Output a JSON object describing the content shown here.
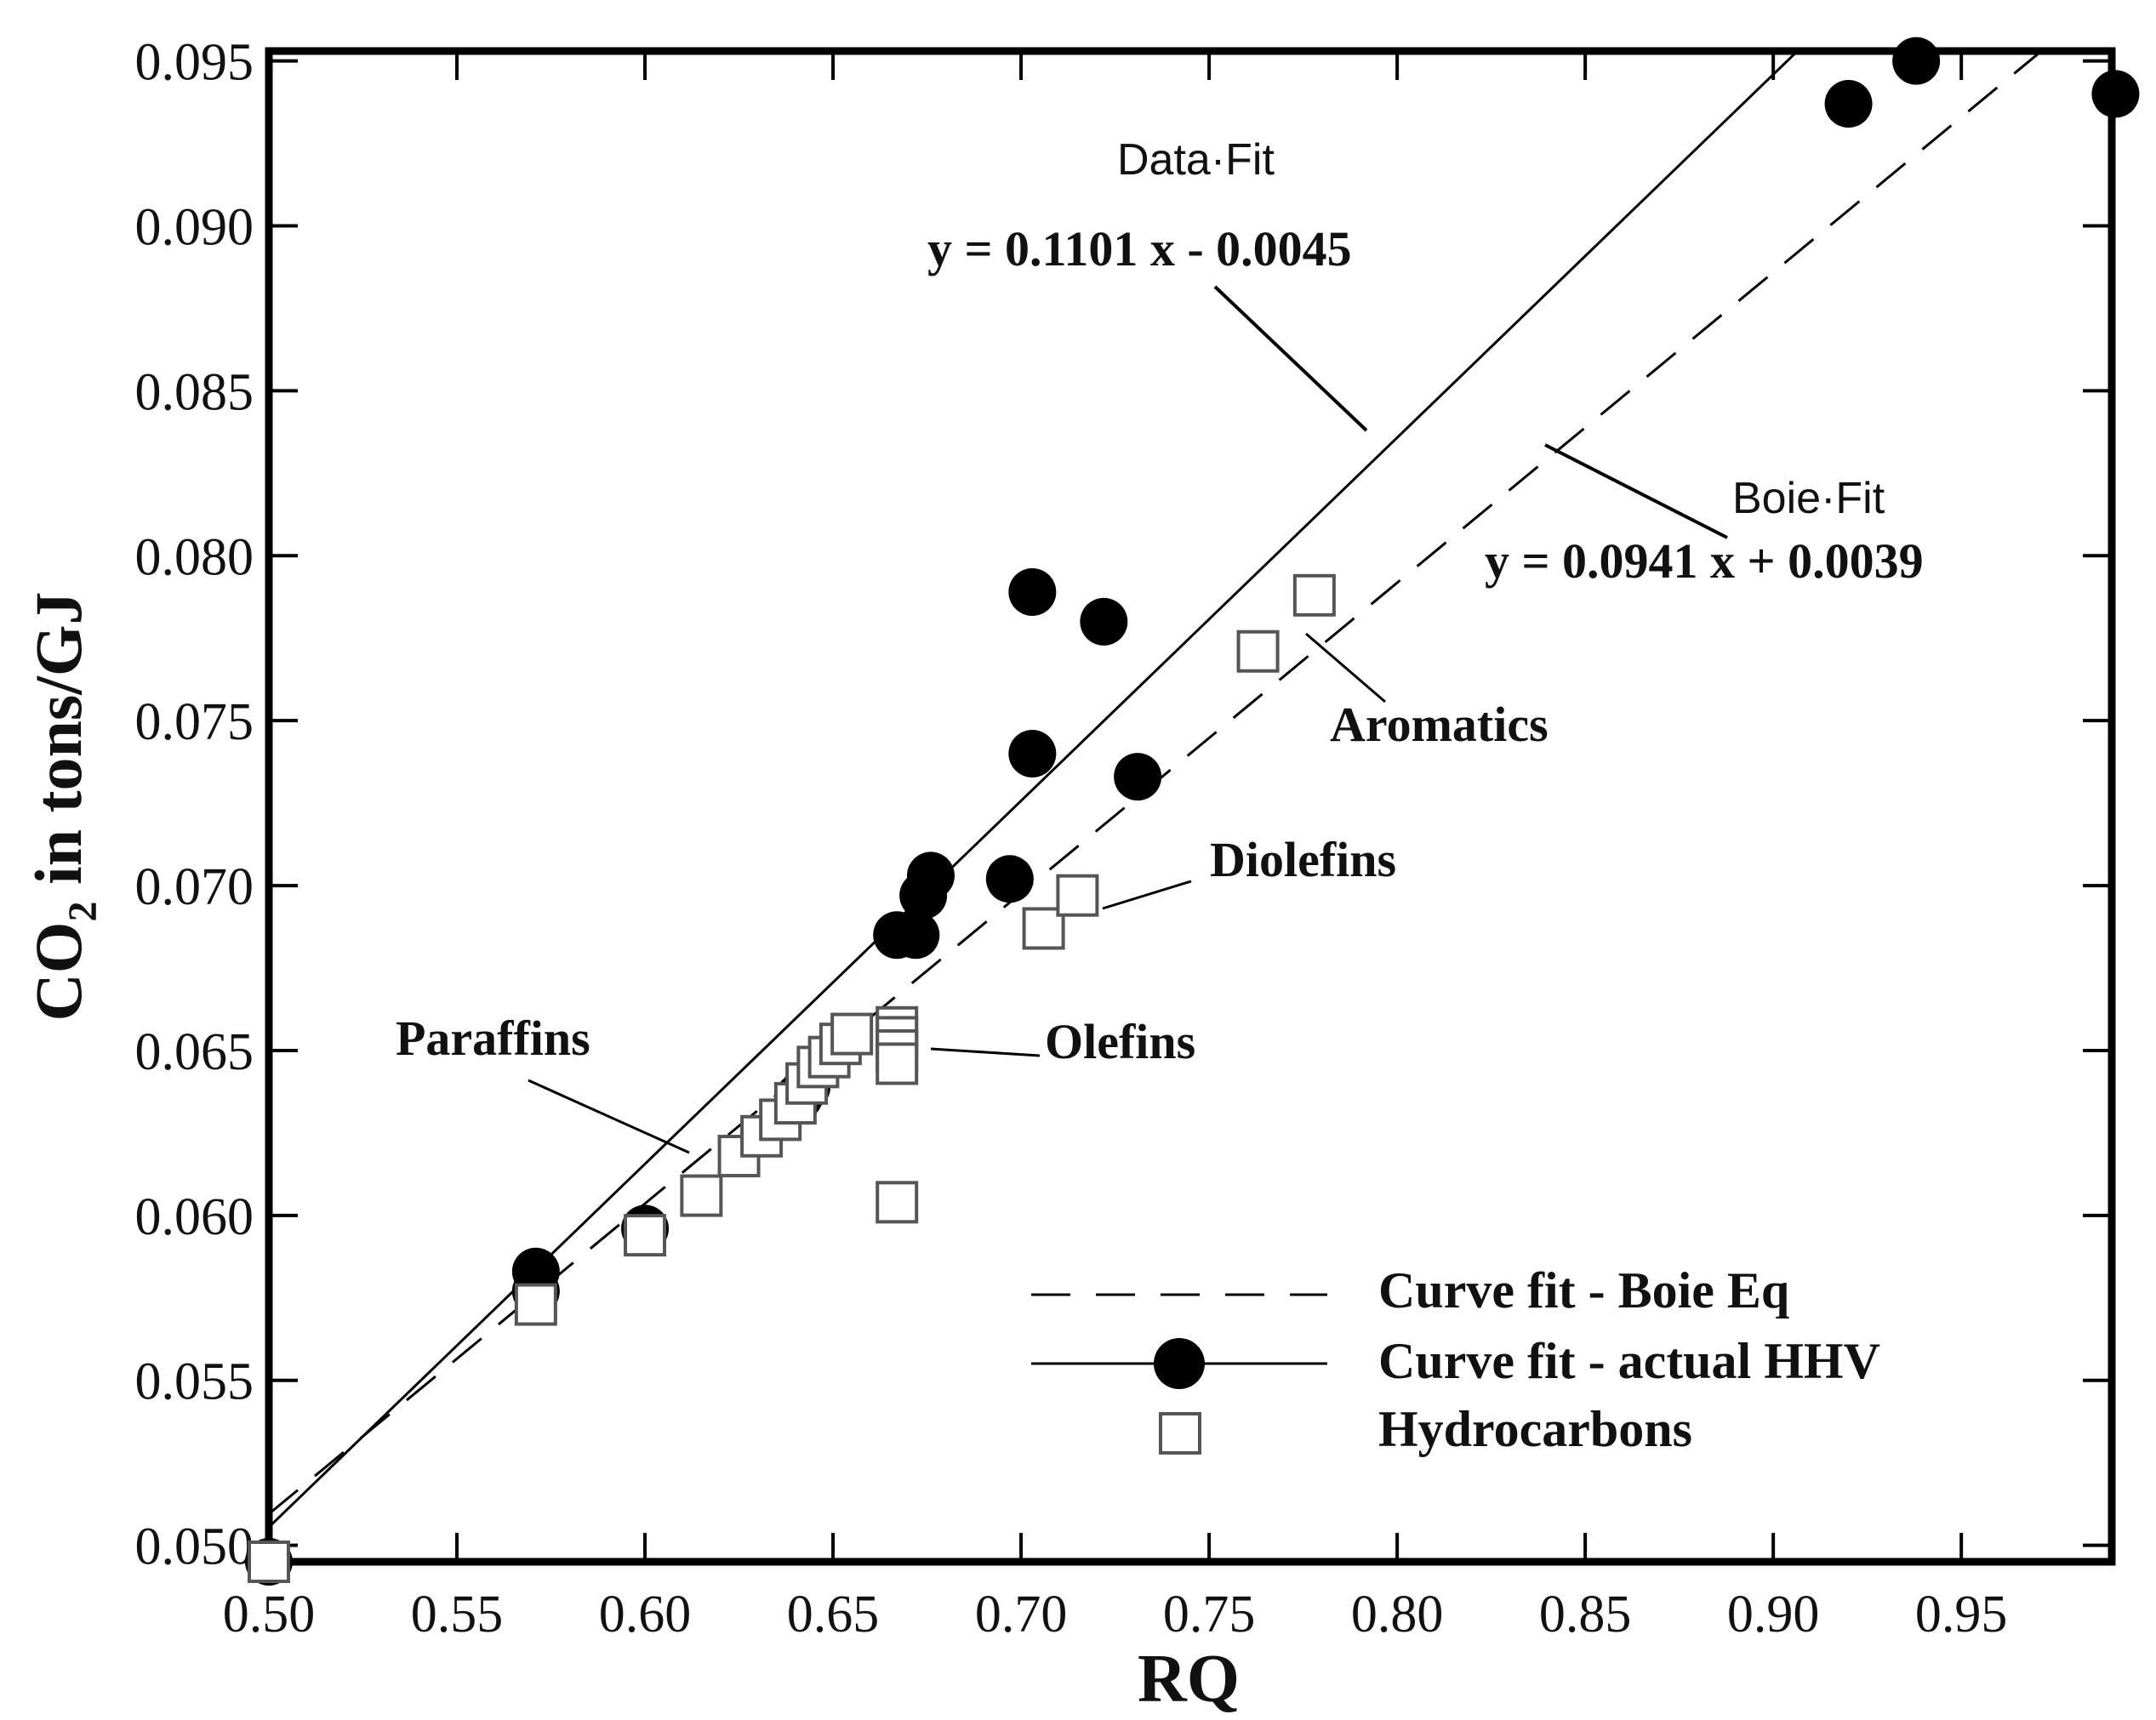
{
  "chart_data": {
    "type": "scatter",
    "xlabel": "RQ",
    "ylabel": "CO2 in tons/GJ",
    "ylabel_main": "CO",
    "ylabel_sub": "2",
    "ylabel_rest": " in tons/GJ",
    "xlim": [
      0.5,
      0.99
    ],
    "ylim": [
      0.0495,
      0.0953
    ],
    "x_ticks": [
      0.5,
      0.55,
      0.6,
      0.65,
      0.7,
      0.75,
      0.8,
      0.85,
      0.9,
      0.95
    ],
    "x_tick_labels": [
      "0.50",
      "0.55",
      "0.60",
      "0.65",
      "0.70",
      "0.75",
      "0.80",
      "0.85",
      "0.90",
      "0.95"
    ],
    "y_ticks": [
      0.05,
      0.055,
      0.06,
      0.065,
      0.07,
      0.075,
      0.08,
      0.085,
      0.09,
      0.095
    ],
    "y_tick_labels": [
      "0.050",
      "0.055",
      "0.060",
      "0.065",
      "0.070",
      "0.075",
      "0.080",
      "0.085",
      "0.090",
      "0.095"
    ],
    "series": [
      {
        "name": "Curve fit - actual HHV",
        "marker": "filled-circle",
        "color": "#000000",
        "points": [
          [
            0.5,
            0.0495
          ],
          [
            0.571,
            0.0583
          ],
          [
            0.571,
            0.0577
          ],
          [
            0.6,
            0.0596
          ],
          [
            0.641,
            0.0636
          ],
          [
            0.643,
            0.0639
          ],
          [
            0.667,
            0.0685
          ],
          [
            0.672,
            0.0685
          ],
          [
            0.674,
            0.0697
          ],
          [
            0.676,
            0.0703
          ],
          [
            0.697,
            0.0702
          ],
          [
            0.703,
            0.074
          ],
          [
            0.703,
            0.0789
          ],
          [
            0.722,
            0.078
          ],
          [
            0.731,
            0.0733
          ],
          [
            0.92,
            0.0937
          ],
          [
            0.938,
            0.095
          ],
          [
            0.991,
            0.094
          ]
        ]
      },
      {
        "name": "Hydrocarbons",
        "marker": "open-square",
        "color": "#555555",
        "points": [
          [
            0.5,
            0.0495
          ],
          [
            0.571,
            0.0573
          ],
          [
            0.6,
            0.0594
          ],
          [
            0.615,
            0.0606
          ],
          [
            0.625,
            0.0618
          ],
          [
            0.631,
            0.0624
          ],
          [
            0.636,
            0.0629
          ],
          [
            0.64,
            0.0634
          ],
          [
            0.643,
            0.064
          ],
          [
            0.646,
            0.0645
          ],
          [
            0.649,
            0.0648
          ],
          [
            0.652,
            0.0652
          ],
          [
            0.655,
            0.0655
          ],
          [
            0.667,
            0.0657
          ],
          [
            0.667,
            0.0654
          ],
          [
            0.667,
            0.065
          ],
          [
            0.667,
            0.0646
          ],
          [
            0.667,
            0.0604
          ],
          [
            0.706,
            0.0687
          ],
          [
            0.715,
            0.0697
          ],
          [
            0.763,
            0.0771
          ],
          [
            0.778,
            0.0788
          ]
        ]
      }
    ],
    "fits": [
      {
        "name": "Curve fit - actual HHV",
        "label": "Data·Fit",
        "equation": "y = 0.1101 x - 0.0045",
        "slope": 0.1101,
        "intercept": -0.0045,
        "style": "solid"
      },
      {
        "name": "Curve fit - Boie Eq",
        "label": "Boie·Fit",
        "equation": "y = 0.0941 x + 0.0039",
        "slope": 0.0941,
        "intercept": 0.0039,
        "style": "dashed"
      }
    ],
    "annotations": [
      "Aromatics",
      "Diolefins",
      "Olefins",
      "Paraffins"
    ],
    "legend": {
      "position": "bottom-right",
      "entries": [
        "Curve fit - Boie Eq",
        "Curve fit - actual HHV",
        "Hydrocarbons"
      ]
    }
  }
}
